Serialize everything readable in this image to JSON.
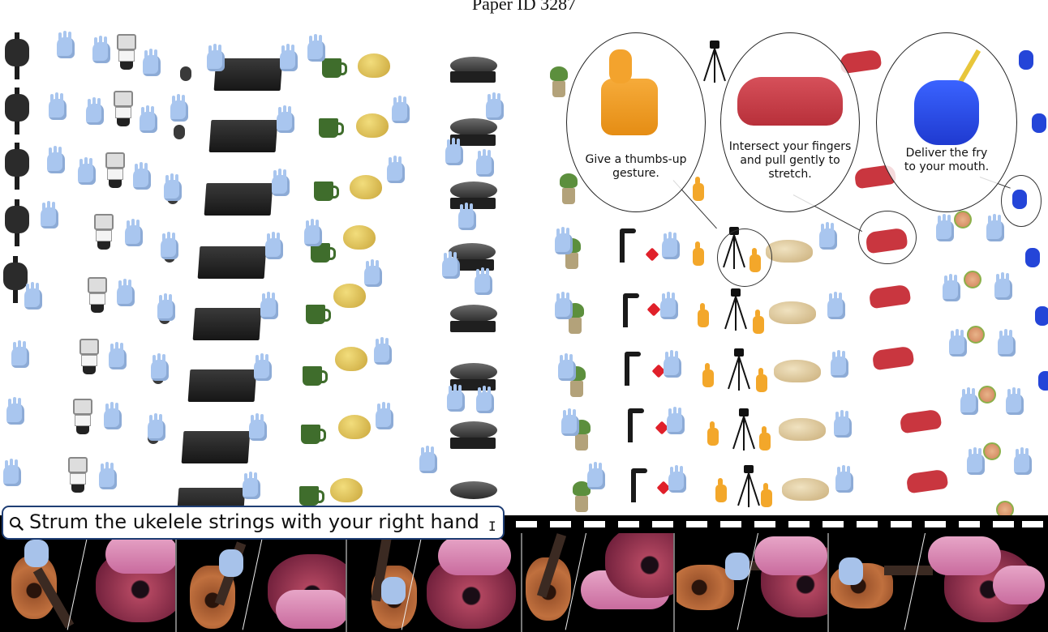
{
  "header": {
    "paper_id": "Paper ID 3287"
  },
  "bubbles": [
    {
      "caption_line1": "Give a thumbs-up",
      "caption_line2": "gesture."
    },
    {
      "caption_line1": "Intersect your fingers",
      "caption_line2": "and pull gently to",
      "caption_line3": "stretch."
    },
    {
      "caption_line1": "Deliver the fry",
      "caption_line2": "to your mouth."
    }
  ],
  "search": {
    "query": "Strum the ukelele strings with your right hand",
    "cursor_glyph": "I"
  },
  "icons": {
    "search": "search-icon",
    "text_cursor": "text-cursor-icon"
  },
  "colors": {
    "search_border": "#1f3e74",
    "hand_blue": "#a9c6ef",
    "hand_red": "#c9363f",
    "thumb_orange": "#f3a72a",
    "hand_dark_blue": "#2445d8",
    "pink_hand": "#e7a5c7"
  }
}
